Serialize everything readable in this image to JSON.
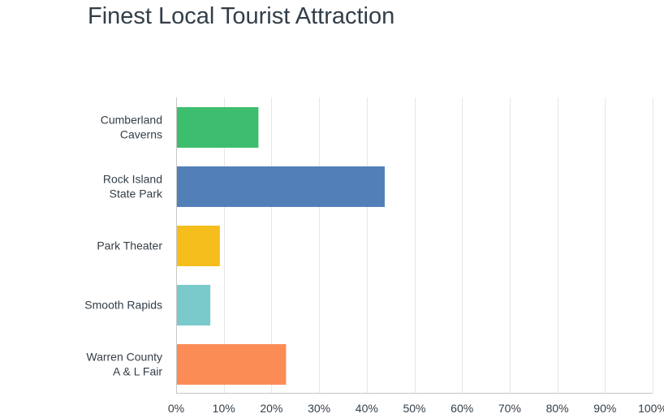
{
  "chart_data": {
    "type": "bar",
    "orientation": "horizontal",
    "title": "Finest Local Tourist Attraction",
    "xlabel": "",
    "ylabel": "",
    "categories": [
      [
        "Cumberland",
        "Caverns"
      ],
      [
        "Rock Island",
        "State Park"
      ],
      [
        "Park Theater"
      ],
      [
        "Smooth Rapids"
      ],
      [
        "Warren County",
        "A & L Fair"
      ]
    ],
    "values": [
      17.1,
      43.6,
      9.0,
      7.0,
      22.9
    ],
    "colors": [
      "#3dbe6e",
      "#537fb9",
      "#f5be1c",
      "#7ac9cb",
      "#fb8c55"
    ],
    "xlim": [
      0,
      100
    ],
    "xticks": [
      0,
      10,
      20,
      30,
      40,
      50,
      60,
      70,
      80,
      90,
      100
    ],
    "xtick_labels": [
      "0%",
      "10%",
      "20%",
      "30%",
      "40%",
      "50%",
      "60%",
      "70%",
      "80%",
      "90%",
      "100%"
    ],
    "grid": true,
    "legend": "none"
  }
}
